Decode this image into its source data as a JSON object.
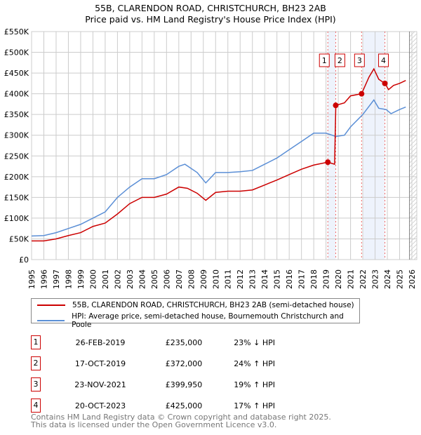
{
  "title": {
    "line1": "55B, CLARENDON ROAD, CHRISTCHURCH, BH23 2AB",
    "line2": "Price paid vs. HM Land Registry's House Price Index (HPI)"
  },
  "chart_data": {
    "type": "line",
    "xlim": [
      1995,
      2026.4
    ],
    "ylim": [
      0,
      550000
    ],
    "x_ticks": [
      "1995",
      "1996",
      "1997",
      "1998",
      "1999",
      "2000",
      "2001",
      "2002",
      "2003",
      "2004",
      "2005",
      "2006",
      "2007",
      "2008",
      "2009",
      "2010",
      "2011",
      "2012",
      "2013",
      "2014",
      "2015",
      "2016",
      "2017",
      "2018",
      "2019",
      "2020",
      "2021",
      "2022",
      "2023",
      "2024",
      "2025",
      "2026"
    ],
    "y_ticks": [
      {
        "v": 0,
        "label": "£0"
      },
      {
        "v": 50000,
        "label": "£50K"
      },
      {
        "v": 100000,
        "label": "£100K"
      },
      {
        "v": 150000,
        "label": "£150K"
      },
      {
        "v": 200000,
        "label": "£200K"
      },
      {
        "v": 250000,
        "label": "£250K"
      },
      {
        "v": 300000,
        "label": "£300K"
      },
      {
        "v": 350000,
        "label": "£350K"
      },
      {
        "v": 400000,
        "label": "£400K"
      },
      {
        "v": 450000,
        "label": "£450K"
      },
      {
        "v": 500000,
        "label": "£500K"
      },
      {
        "v": 550000,
        "label": "£550K"
      }
    ],
    "grid": true,
    "series": [
      {
        "name": "55B, CLARENDON ROAD, CHRISTCHURCH, BH23 2AB (semi-detached house)",
        "color": "#cc0000",
        "x": [
          1995,
          1996,
          1997,
          1998,
          1999,
          2000,
          2001,
          2002,
          2003,
          2004,
          2005,
          2006,
          2007,
          2007.7,
          2008.5,
          2009.2,
          2010,
          2011,
          2012,
          2013,
          2014,
          2015,
          2016,
          2017,
          2018,
          2019.15,
          2019.7,
          2019.8,
          2020.5,
          2021,
          2021.9,
          2022.5,
          2022.9,
          2023.3,
          2023.8,
          2024.1,
          2024.5,
          2025,
          2025.5
        ],
        "y": [
          45000,
          45000,
          50000,
          58000,
          65000,
          80000,
          88000,
          110000,
          135000,
          150000,
          150000,
          158000,
          175000,
          172000,
          160000,
          143000,
          162000,
          165000,
          165000,
          168000,
          180000,
          192000,
          205000,
          218000,
          228000,
          235000,
          230000,
          372000,
          378000,
          395000,
          400000,
          440000,
          460000,
          435000,
          425000,
          410000,
          420000,
          425000,
          432000
        ]
      },
      {
        "name": "HPI: Average price, semi-detached house, Bournemouth Christchurch and Poole",
        "color": "#5b8fd6",
        "x": [
          1995,
          1996,
          1997,
          1998,
          1999,
          2000,
          2001,
          2002,
          2003,
          2004,
          2005,
          2006,
          2007,
          2007.5,
          2008.5,
          2009.2,
          2010,
          2011,
          2012,
          2013,
          2014,
          2015,
          2016,
          2017,
          2018,
          2019,
          2019.8,
          2020.5,
          2021,
          2022,
          2022.9,
          2023.3,
          2023.9,
          2024.3,
          2025,
          2025.5
        ],
        "y": [
          57000,
          58000,
          65000,
          75000,
          85000,
          100000,
          115000,
          150000,
          175000,
          195000,
          195000,
          205000,
          225000,
          230000,
          210000,
          185000,
          210000,
          210000,
          212000,
          215000,
          230000,
          245000,
          265000,
          285000,
          305000,
          305000,
          297000,
          300000,
          320000,
          350000,
          385000,
          365000,
          362000,
          352000,
          362000,
          368000
        ]
      }
    ],
    "sales": [
      {
        "n": "1",
        "x": 2019.15,
        "y": 235000,
        "date": "26-FEB-2019",
        "price": "£235,000",
        "hpi": "23% ↓ HPI"
      },
      {
        "n": "2",
        "x": 2019.79,
        "y": 372000,
        "date": "17-OCT-2019",
        "price": "£372,000",
        "hpi": "24% ↑ HPI"
      },
      {
        "n": "3",
        "x": 2021.9,
        "y": 399950,
        "date": "23-NOV-2021",
        "price": "£399,950",
        "hpi": "19% ↑ HPI"
      },
      {
        "n": "4",
        "x": 2023.8,
        "y": 425000,
        "date": "20-OCT-2023",
        "price": "£425,000",
        "hpi": "17% ↑ HPI"
      }
    ]
  },
  "legend": {
    "red": "55B, CLARENDON ROAD, CHRISTCHURCH, BH23 2AB (semi-detached house)",
    "blue": "HPI: Average price, semi-detached house, Bournemouth Christchurch and Poole"
  },
  "footer": {
    "line1": "Contains HM Land Registry data © Crown copyright and database right 2025.",
    "line2": "This data is licensed under the Open Government Licence v3.0."
  }
}
